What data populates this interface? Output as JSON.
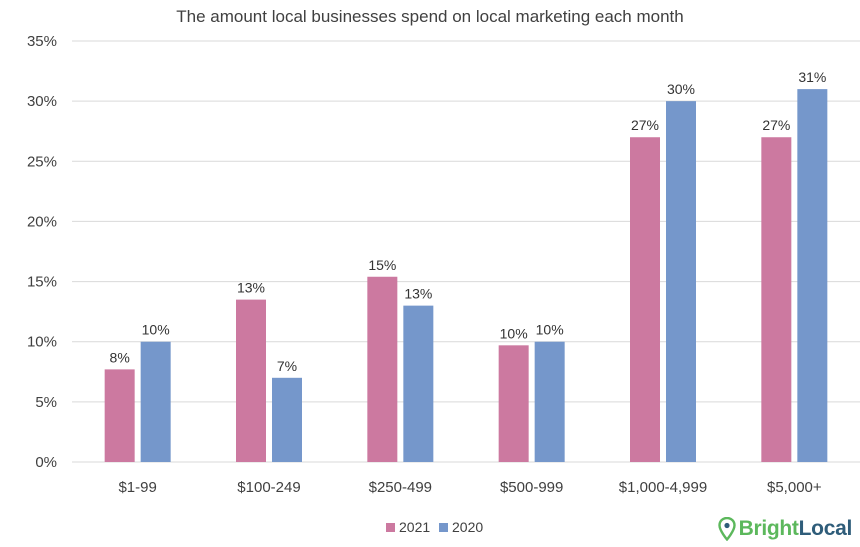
{
  "chart_data": {
    "type": "bar",
    "title": "The amount local businesses spend on local marketing each month",
    "categories": [
      "$1-99",
      "$100-249",
      "$250-499",
      "$500-999",
      "$1,000-4,999",
      "$5,000+"
    ],
    "series": [
      {
        "name": "2021",
        "color": "#cc79a0",
        "values": [
          7.7,
          13.5,
          15.4,
          9.7,
          27.0,
          27.0
        ],
        "labels": [
          "8%",
          "13%",
          "15%",
          "10%",
          "27%",
          "27%"
        ]
      },
      {
        "name": "2020",
        "color": "#7597cb",
        "values": [
          10,
          7,
          13,
          10,
          30,
          31
        ],
        "labels": [
          "10%",
          "7%",
          "13%",
          "10%",
          "30%",
          "31%"
        ]
      }
    ],
    "ylim": [
      0,
      35
    ],
    "yticks": [
      0,
      5,
      10,
      15,
      20,
      25,
      30,
      35
    ],
    "ytick_labels": [
      "0%",
      "5%",
      "10%",
      "15%",
      "20%",
      "25%",
      "30%",
      "35%"
    ],
    "xlabel": "",
    "ylabel": "",
    "grid": true,
    "legend_position": "bottom-center"
  },
  "brand": {
    "name_part1": "Bright",
    "name_part2": "Local",
    "icon": "map-pin-icon",
    "color1": "#5cb85c",
    "color2": "#2f5d7a"
  }
}
